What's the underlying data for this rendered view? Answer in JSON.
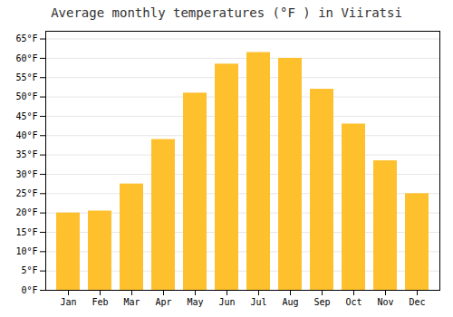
{
  "chart_data": {
    "type": "bar",
    "title": "Average monthly temperatures (°F ) in Viiratsi",
    "categories": [
      "Jan",
      "Feb",
      "Mar",
      "Apr",
      "May",
      "Jun",
      "Jul",
      "Aug",
      "Sep",
      "Oct",
      "Nov",
      "Dec"
    ],
    "values": [
      20,
      20.5,
      27.5,
      39,
      51,
      58.5,
      61.5,
      60,
      52,
      43,
      33.5,
      25
    ],
    "color": "#FFC02E",
    "ylim": [
      0,
      67
    ],
    "yticks": [
      {
        "value": 0,
        "label": "0°F"
      },
      {
        "value": 5,
        "label": "5°F"
      },
      {
        "value": 10,
        "label": "10°F"
      },
      {
        "value": 15,
        "label": "15°F"
      },
      {
        "value": 20,
        "label": "20°F"
      },
      {
        "value": 25,
        "label": "25°F"
      },
      {
        "value": 30,
        "label": "30°F"
      },
      {
        "value": 35,
        "label": "35°F"
      },
      {
        "value": 40,
        "label": "40°F"
      },
      {
        "value": 45,
        "label": "45°F"
      },
      {
        "value": 50,
        "label": "50°F"
      },
      {
        "value": 55,
        "label": "55°F"
      },
      {
        "value": 60,
        "label": "60°F"
      },
      {
        "value": 65,
        "label": "65°F"
      }
    ],
    "grid": true
  }
}
